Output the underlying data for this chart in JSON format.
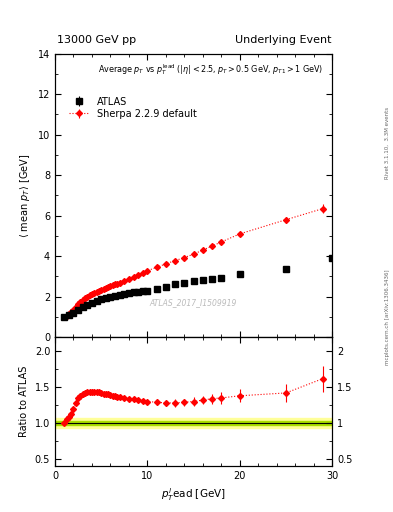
{
  "title_left": "13000 GeV pp",
  "title_right": "Underlying Event",
  "watermark": "ATLAS_2017_I1509919",
  "right_label": "Rivet 3.1.10,  3.3M events",
  "right_label2": "mcplots.cern.ch [arXiv:1306.3436]",
  "ylim_main": [
    0,
    14
  ],
  "ylim_ratio": [
    0.4,
    2.2
  ],
  "xlim": [
    0,
    30
  ],
  "atlas_x": [
    1.0,
    1.5,
    2.0,
    2.5,
    3.0,
    3.5,
    4.0,
    4.5,
    5.0,
    5.5,
    6.0,
    6.5,
    7.0,
    7.5,
    8.0,
    8.5,
    9.0,
    9.5,
    10.0,
    11.0,
    12.0,
    13.0,
    14.0,
    15.0,
    16.0,
    17.0,
    18.0,
    20.0,
    25.0,
    30.0
  ],
  "atlas_y": [
    1.0,
    1.1,
    1.2,
    1.35,
    1.5,
    1.6,
    1.7,
    1.8,
    1.88,
    1.95,
    2.0,
    2.05,
    2.1,
    2.15,
    2.18,
    2.22,
    2.25,
    2.28,
    2.3,
    2.4,
    2.5,
    2.6,
    2.65,
    2.75,
    2.8,
    2.85,
    2.9,
    3.1,
    3.35,
    3.9
  ],
  "atlas_yerr": [
    0.04,
    0.04,
    0.04,
    0.04,
    0.04,
    0.04,
    0.04,
    0.04,
    0.04,
    0.04,
    0.04,
    0.04,
    0.04,
    0.04,
    0.04,
    0.04,
    0.04,
    0.04,
    0.04,
    0.04,
    0.04,
    0.04,
    0.04,
    0.04,
    0.04,
    0.04,
    0.04,
    0.04,
    0.06,
    0.08
  ],
  "sherpa_x": [
    1.0,
    1.25,
    1.5,
    1.75,
    2.0,
    2.25,
    2.5,
    2.75,
    3.0,
    3.25,
    3.5,
    3.75,
    4.0,
    4.25,
    4.5,
    4.75,
    5.0,
    5.25,
    5.5,
    5.75,
    6.0,
    6.25,
    6.5,
    6.75,
    7.0,
    7.5,
    8.0,
    8.5,
    9.0,
    9.5,
    10.0,
    11.0,
    12.0,
    13.0,
    14.0,
    15.0,
    16.0,
    17.0,
    18.0,
    20.0,
    25.0,
    29.0
  ],
  "sherpa_y": [
    1.0,
    1.05,
    1.12,
    1.22,
    1.35,
    1.5,
    1.62,
    1.72,
    1.82,
    1.92,
    2.0,
    2.07,
    2.13,
    2.18,
    2.23,
    2.28,
    2.33,
    2.38,
    2.43,
    2.48,
    2.52,
    2.56,
    2.6,
    2.64,
    2.68,
    2.78,
    2.88,
    2.98,
    3.08,
    3.18,
    3.28,
    3.45,
    3.62,
    3.78,
    3.93,
    4.1,
    4.3,
    4.5,
    4.7,
    5.1,
    5.8,
    6.35
  ],
  "sherpa_yerr": [
    0.02,
    0.02,
    0.02,
    0.02,
    0.02,
    0.02,
    0.02,
    0.02,
    0.02,
    0.02,
    0.02,
    0.02,
    0.02,
    0.02,
    0.02,
    0.02,
    0.02,
    0.02,
    0.02,
    0.02,
    0.02,
    0.02,
    0.02,
    0.02,
    0.02,
    0.02,
    0.02,
    0.02,
    0.02,
    0.02,
    0.02,
    0.03,
    0.03,
    0.04,
    0.04,
    0.05,
    0.06,
    0.07,
    0.08,
    0.1,
    0.15,
    0.22
  ],
  "ratio_x": [
    1.0,
    1.25,
    1.5,
    1.75,
    2.0,
    2.25,
    2.5,
    2.75,
    3.0,
    3.25,
    3.5,
    3.75,
    4.0,
    4.25,
    4.5,
    4.75,
    5.0,
    5.25,
    5.5,
    5.75,
    6.0,
    6.25,
    6.5,
    6.75,
    7.0,
    7.5,
    8.0,
    8.5,
    9.0,
    9.5,
    10.0,
    11.0,
    12.0,
    13.0,
    14.0,
    15.0,
    16.0,
    17.0,
    18.0,
    20.0,
    25.0,
    29.0
  ],
  "ratio_y": [
    1.0,
    1.05,
    1.08,
    1.12,
    1.2,
    1.28,
    1.35,
    1.38,
    1.4,
    1.42,
    1.43,
    1.44,
    1.44,
    1.44,
    1.43,
    1.43,
    1.42,
    1.41,
    1.41,
    1.4,
    1.39,
    1.38,
    1.38,
    1.37,
    1.36,
    1.35,
    1.34,
    1.33,
    1.32,
    1.31,
    1.3,
    1.29,
    1.28,
    1.28,
    1.29,
    1.3,
    1.32,
    1.34,
    1.35,
    1.38,
    1.42,
    1.62
  ],
  "ratio_yerr": [
    0.03,
    0.03,
    0.03,
    0.03,
    0.03,
    0.03,
    0.03,
    0.03,
    0.03,
    0.03,
    0.03,
    0.03,
    0.03,
    0.03,
    0.03,
    0.03,
    0.03,
    0.03,
    0.03,
    0.03,
    0.03,
    0.03,
    0.03,
    0.03,
    0.03,
    0.03,
    0.03,
    0.03,
    0.03,
    0.03,
    0.03,
    0.04,
    0.04,
    0.05,
    0.05,
    0.06,
    0.06,
    0.07,
    0.08,
    0.09,
    0.13,
    0.18
  ],
  "atlas_color": "black",
  "sherpa_color": "red",
  "band_color_inner": "#aadd00",
  "band_color_outer": "#ffff99"
}
